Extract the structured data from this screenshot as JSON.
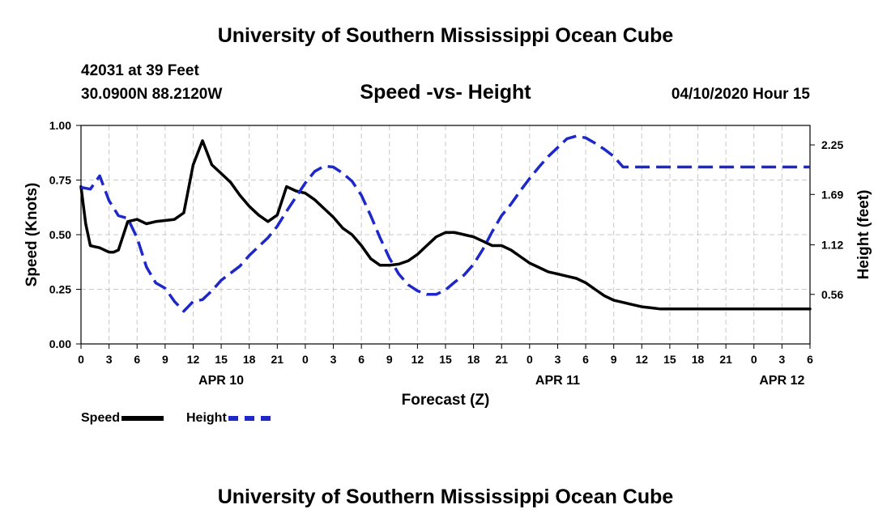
{
  "header": {
    "title": "University of Southern Mississippi Ocean Cube",
    "station": "42031 at 39 Feet",
    "coords": "30.0900N 88.2120W",
    "subtitle": "Speed -vs- Height",
    "datetime": "04/10/2020 Hour 15"
  },
  "footer": {
    "title": "University of Southern Mississippi Ocean Cube"
  },
  "legend": {
    "speed": "Speed",
    "height": "Height"
  },
  "chart_data": {
    "type": "line",
    "title": "Speed -vs- Height",
    "xlabel": "Forecast (Z)",
    "ylabel": "Speed (Knots)",
    "y2label": "Height (feet)",
    "xlim": [
      0,
      78
    ],
    "ylim": [
      0,
      1.0
    ],
    "y2lim": [
      0.0,
      2.47
    ],
    "grid": true,
    "x_tick_values": [
      0,
      3,
      6,
      9,
      12,
      15,
      18,
      21,
      24,
      27,
      30,
      33,
      36,
      39,
      42,
      45,
      48,
      51,
      54,
      57,
      60,
      63,
      66,
      69,
      72,
      75,
      78
    ],
    "x_tick_labels": [
      "0",
      "3",
      "6",
      "9",
      "12",
      "15",
      "18",
      "21",
      "0",
      "3",
      "6",
      "9",
      "12",
      "15",
      "18",
      "21",
      "0",
      "3",
      "6",
      "9",
      "12",
      "15",
      "18",
      "21",
      "0",
      "3",
      "6"
    ],
    "y_ticks": [
      "0.00",
      "0.25",
      "0.50",
      "0.75",
      "1.00"
    ],
    "y_tick_values": [
      0,
      0.25,
      0.5,
      0.75,
      1.0
    ],
    "y2_ticks": [
      "0.56",
      "1.12",
      "1.69",
      "2.25"
    ],
    "y2_tick_values": [
      0.56,
      1.12,
      1.69,
      2.25
    ],
    "date_labels": [
      {
        "x": 15,
        "label": "APR 10"
      },
      {
        "x": 51,
        "label": "APR 11"
      },
      {
        "x": 75,
        "label": "APR 12"
      }
    ],
    "series": [
      {
        "name": "Speed",
        "axis": "left",
        "color": "#000000",
        "x": [
          0,
          0.5,
          1,
          1.5,
          2,
          3,
          3.5,
          4,
          5,
          6,
          7,
          8,
          9,
          10,
          11,
          12,
          13,
          14,
          15,
          16,
          17,
          18,
          19,
          20,
          21,
          22,
          23,
          24,
          25,
          26,
          27,
          28,
          29,
          30,
          31,
          32,
          33,
          34,
          35,
          36,
          37,
          38,
          39,
          40,
          41,
          42,
          43,
          44,
          45,
          46,
          47,
          48,
          49,
          50,
          51,
          52,
          53,
          54,
          55,
          56,
          57,
          58,
          59,
          60,
          61,
          62,
          63,
          64,
          65,
          66,
          67,
          68,
          69,
          70,
          71,
          72,
          73,
          74,
          75,
          76,
          77,
          78
        ],
        "values": [
          0.72,
          0.55,
          0.45,
          0.445,
          0.44,
          0.42,
          0.42,
          0.43,
          0.56,
          0.57,
          0.55,
          0.56,
          0.565,
          0.57,
          0.6,
          0.82,
          0.93,
          0.82,
          0.78,
          0.74,
          0.68,
          0.63,
          0.59,
          0.56,
          0.59,
          0.72,
          0.7,
          0.69,
          0.66,
          0.62,
          0.58,
          0.53,
          0.5,
          0.45,
          0.39,
          0.36,
          0.36,
          0.365,
          0.38,
          0.41,
          0.45,
          0.49,
          0.51,
          0.51,
          0.5,
          0.49,
          0.47,
          0.45,
          0.45,
          0.43,
          0.4,
          0.37,
          0.35,
          0.33,
          0.32,
          0.31,
          0.3,
          0.28,
          0.25,
          0.22,
          0.2,
          0.19,
          0.18,
          0.17,
          0.165,
          0.16,
          0.16,
          0.16,
          0.16,
          0.16,
          0.16,
          0.16,
          0.16,
          0.16,
          0.16,
          0.16,
          0.16,
          0.16,
          0.16,
          0.16,
          0.16,
          0.16
        ]
      },
      {
        "name": "Height",
        "axis": "right",
        "color": "#1e28c8",
        "x": [
          0,
          1,
          2,
          3,
          4,
          5,
          6,
          7,
          8,
          9,
          10,
          11,
          12,
          13,
          14,
          15,
          16,
          17,
          18,
          19,
          20,
          21,
          22,
          23,
          24,
          25,
          26,
          27,
          28,
          29,
          30,
          31,
          32,
          33,
          34,
          35,
          36,
          37,
          38,
          39,
          40,
          41,
          42,
          43,
          44,
          45,
          46,
          47,
          48,
          49,
          50,
          51,
          52,
          53,
          54,
          55,
          56,
          57,
          58,
          59,
          60,
          61,
          62,
          63,
          64,
          65,
          66,
          67,
          68,
          69,
          70,
          71,
          72,
          73,
          74,
          75,
          76,
          77,
          78
        ],
        "values": [
          1.77,
          1.75,
          1.9,
          1.62,
          1.45,
          1.42,
          1.2,
          0.87,
          0.69,
          0.63,
          0.48,
          0.37,
          0.48,
          0.5,
          0.6,
          0.72,
          0.8,
          0.88,
          1.0,
          1.1,
          1.2,
          1.33,
          1.5,
          1.66,
          1.82,
          1.95,
          2.01,
          2.0,
          1.93,
          1.84,
          1.68,
          1.45,
          1.2,
          0.97,
          0.79,
          0.67,
          0.6,
          0.56,
          0.56,
          0.61,
          0.7,
          0.78,
          0.9,
          1.07,
          1.27,
          1.45,
          1.58,
          1.73,
          1.87,
          2.0,
          2.12,
          2.22,
          2.32,
          2.35,
          2.33,
          2.27,
          2.2,
          2.12,
          2.0,
          2.0,
          2.0,
          2.0,
          2.0,
          2.0,
          2.0,
          2.0,
          2.0,
          2.0,
          2.0,
          2.0,
          2.0,
          2.0,
          2.0,
          2.0,
          2.0,
          2.0,
          2.0,
          2.0,
          2.0
        ]
      }
    ]
  }
}
